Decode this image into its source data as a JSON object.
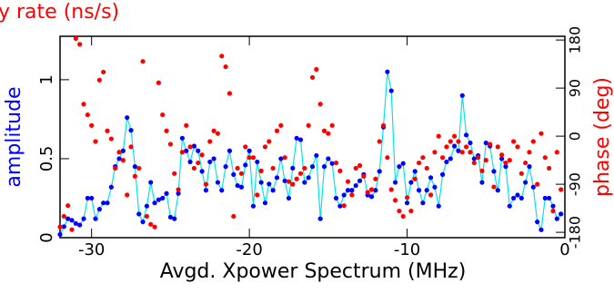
{
  "chart_data": {
    "type": "scatter",
    "title": "y rate (ns/s)",
    "x_label": "Avgd. Xpower Spectrum (MHz)",
    "y_label": "amplitude",
    "y2_label": "phase (deg)",
    "xlim": [
      -32,
      0
    ],
    "xticks": [
      -30,
      -20,
      -10,
      0
    ],
    "ylim": [
      0,
      1.275
    ],
    "yticks": [
      0,
      0.5,
      1
    ],
    "y2lim": [
      -190,
      187
    ],
    "y2ticks": [
      -180,
      -90,
      0,
      90,
      180
    ],
    "x": [
      -32,
      -31.75,
      -31.5,
      -31.25,
      -31,
      -30.75,
      -30.5,
      -30.25,
      -30,
      -29.75,
      -29.5,
      -29.25,
      -29,
      -28.75,
      -28.5,
      -28.25,
      -28,
      -27.75,
      -27.5,
      -27.25,
      -27,
      -26.75,
      -26.5,
      -26.25,
      -26,
      -25.75,
      -25.5,
      -25.25,
      -25,
      -24.75,
      -24.5,
      -24.25,
      -24,
      -23.75,
      -23.5,
      -23.25,
      -23,
      -22.75,
      -22.5,
      -22.25,
      -22,
      -21.75,
      -21.5,
      -21.25,
      -21,
      -20.75,
      -20.5,
      -20.25,
      -20,
      -19.75,
      -19.5,
      -19.25,
      -19,
      -18.75,
      -18.5,
      -18.25,
      -18,
      -17.75,
      -17.5,
      -17.25,
      -17,
      -16.75,
      -16.5,
      -16.25,
      -16,
      -15.75,
      -15.5,
      -15.25,
      -15,
      -14.75,
      -14.5,
      -14.25,
      -14,
      -13.75,
      -13.5,
      -13.25,
      -13,
      -12.75,
      -12.5,
      -12.25,
      -12,
      -11.75,
      -11.5,
      -11.25,
      -11,
      -10.75,
      -10.5,
      -10.25,
      -10,
      -9.75,
      -9.5,
      -9.25,
      -9,
      -8.75,
      -8.5,
      -8.25,
      -8,
      -7.75,
      -7.5,
      -7.25,
      -7,
      -6.75,
      -6.5,
      -6.25,
      -6,
      -5.75,
      -5.5,
      -5.25,
      -5,
      -4.75,
      -4.5,
      -4.25,
      -4,
      -3.75,
      -3.5,
      -3.25,
      -3,
      -2.75,
      -2.5,
      -2.25,
      -2,
      -1.75,
      -1.5,
      -1.25,
      -1,
      -0.75,
      -0.5,
      -0.25
    ],
    "series": [
      {
        "color": "#0000ff",
        "line_color": "#00e5ee",
        "values": [
          0.02,
          0.07,
          0.12,
          0.11,
          0.09,
          0.08,
          0.12,
          0.25,
          0.25,
          0.12,
          0.18,
          0.22,
          0.22,
          0.32,
          0.45,
          0.5,
          0.55,
          0.76,
          0.68,
          0.45,
          0.15,
          0.1,
          0.2,
          0.35,
          0.22,
          0.24,
          0.25,
          0.28,
          0.13,
          0.12,
          0.28,
          0.63,
          0.55,
          0.48,
          0.58,
          0.55,
          0.42,
          0.3,
          0.48,
          0.5,
          0.35,
          0.3,
          0.45,
          0.55,
          0.4,
          0.33,
          0.32,
          0.46,
          0.55,
          0.2,
          0.48,
          0.35,
          0.22,
          0.34,
          0.3,
          0.38,
          0.5,
          0.36,
          0.25,
          0.44,
          0.63,
          0.62,
          0.35,
          0.38,
          0.45,
          0.52,
          0.12,
          0.45,
          0.5,
          0.47,
          0.25,
          0.2,
          0.27,
          0.3,
          0.3,
          0.33,
          0.36,
          0.4,
          0.27,
          0.26,
          0.3,
          0.42,
          0.7,
          1.05,
          0.93,
          0.35,
          0.45,
          0.47,
          0.22,
          0.35,
          0.42,
          0.3,
          0.22,
          0.3,
          0.38,
          0.32,
          0.2,
          0.4,
          0.48,
          0.5,
          0.58,
          0.55,
          0.9,
          0.65,
          0.6,
          0.5,
          0.52,
          0.35,
          0.6,
          0.58,
          0.42,
          0.3,
          0.5,
          0.45,
          0.2,
          0.25,
          0.27,
          0.25,
          0.35,
          0.45,
          0.32,
          0.1,
          0.05,
          0.25,
          0.25,
          0.2,
          0.12,
          0.15
        ]
      },
      {
        "color": "#ff0000",
        "axis": "y2",
        "values": [
          -170,
          -150,
          -130,
          -175,
          183,
          172,
          60,
          40,
          20,
          -10,
          105,
          120,
          10,
          -5,
          -60,
          -30,
          -45,
          -110,
          -20,
          -75,
          -60,
          140,
          -150,
          -165,
          -170,
          100,
          40,
          10,
          -15,
          -70,
          -100,
          -30,
          20,
          -20,
          -60,
          -50,
          -35,
          -90,
          -10,
          10,
          5,
          150,
          130,
          80,
          -150,
          -60,
          -70,
          -20,
          -40,
          -40,
          -110,
          -65,
          -20,
          -10,
          -60,
          10,
          20,
          -40,
          -85,
          -90,
          -80,
          -70,
          -60,
          20,
          110,
          125,
          60,
          10,
          5,
          20,
          -50,
          -65,
          -130,
          -85,
          -110,
          -60,
          -55,
          -75,
          -105,
          -100,
          -80,
          -10,
          20,
          -40,
          -100,
          -120,
          -140,
          -150,
          -115,
          -140,
          -80,
          -50,
          -40,
          -60,
          -110,
          -30,
          0,
          -40,
          -20,
          -10,
          0,
          -10,
          -30,
          -20,
          -30,
          -50,
          -40,
          -65,
          -45,
          -15,
          -95,
          -20,
          -35,
          -50,
          -45,
          -10,
          -20,
          -70,
          -50,
          -30,
          -10,
          -90,
          5,
          -40,
          -60,
          -140,
          -30,
          -100
        ]
      }
    ]
  }
}
